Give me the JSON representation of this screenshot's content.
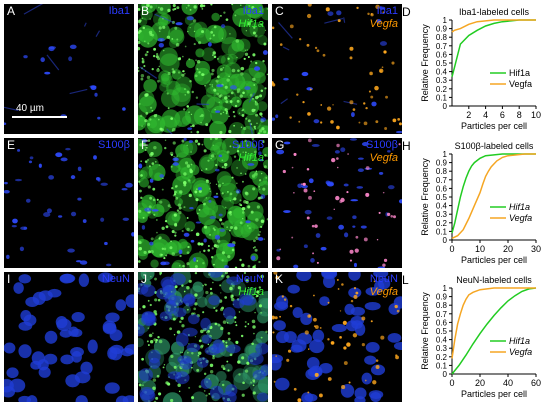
{
  "scale_bar": {
    "label": "40 µm"
  },
  "panels": [
    {
      "letter": "A",
      "marker": "Iba1",
      "probe": "",
      "type": "iba1_a"
    },
    {
      "letter": "B",
      "marker": "Iba1",
      "probe": "Hif1a",
      "type": "iba1_b"
    },
    {
      "letter": "C",
      "marker": "Iba1",
      "probe": "Vegfa",
      "type": "iba1_c"
    },
    {
      "letter": "E",
      "marker": "S100β",
      "probe": "",
      "type": "s100_e"
    },
    {
      "letter": "F",
      "marker": "S100β",
      "probe": "Hif1a",
      "type": "s100_f"
    },
    {
      "letter": "G",
      "marker": "S100β",
      "probe": "Vegfa",
      "type": "s100_g"
    },
    {
      "letter": "I",
      "marker": "NeuN",
      "probe": "",
      "type": "neun_i"
    },
    {
      "letter": "J",
      "marker": "NeuN",
      "probe": "Hif1a",
      "type": "neun_j"
    },
    {
      "letter": "K",
      "marker": "NeuN",
      "probe": "Vegfa",
      "type": "neun_k"
    }
  ],
  "colors": {
    "hif1a": "#22cc22",
    "vegfa": "#f5a623",
    "marker": "#2b3bff"
  },
  "chart_data": [
    {
      "letter": "D",
      "type": "line",
      "title": "Iba1-labeled cells",
      "xlabel": "Particles per cell",
      "ylabel": "Relative Frequency",
      "xlim": [
        0,
        10
      ],
      "ylim": [
        0,
        1.0
      ],
      "xticks": [
        2,
        4,
        6,
        8,
        10
      ],
      "yticks": [
        0,
        0.1,
        0.2,
        0.3,
        0.4,
        0.5,
        0.6,
        0.7,
        0.8,
        0.9,
        1.0
      ],
      "legend_italic": false,
      "series": [
        {
          "name": "Hif1a",
          "color": "#22cc22",
          "x": [
            0,
            0.3,
            1,
            2,
            3,
            4,
            5,
            6,
            7,
            8,
            10
          ],
          "y": [
            0.34,
            0.45,
            0.72,
            0.82,
            0.88,
            0.93,
            0.96,
            0.98,
            0.99,
            1.0,
            1.0
          ]
        },
        {
          "name": "Vegfa",
          "color": "#f5a623",
          "x": [
            0,
            0.3,
            1,
            2,
            3,
            4,
            5,
            6,
            10
          ],
          "y": [
            0.86,
            0.88,
            0.9,
            0.95,
            0.98,
            0.99,
            1.0,
            1.0,
            1.0
          ]
        }
      ]
    },
    {
      "letter": "H",
      "type": "line",
      "title": "S100β-labeled cells",
      "xlabel": "Particles per cell",
      "ylabel": "Relative Frequency",
      "xlim": [
        0,
        30
      ],
      "ylim": [
        0,
        1.0
      ],
      "xticks": [
        0,
        10,
        20,
        30
      ],
      "yticks": [
        0,
        0.1,
        0.2,
        0.3,
        0.4,
        0.5,
        0.6,
        0.7,
        0.8,
        0.9,
        1.0
      ],
      "legend_italic": true,
      "series": [
        {
          "name": "Hif1a",
          "color": "#22cc22",
          "x": [
            0,
            1,
            2,
            3,
            4,
            5,
            6,
            7,
            8,
            10,
            12,
            15,
            18,
            22,
            30
          ],
          "y": [
            0.08,
            0.2,
            0.35,
            0.5,
            0.62,
            0.72,
            0.8,
            0.86,
            0.9,
            0.95,
            0.98,
            0.99,
            1.0,
            1.0,
            1.0
          ]
        },
        {
          "name": "Vegfa",
          "color": "#f5a623",
          "x": [
            0,
            2,
            4,
            6,
            8,
            10,
            11,
            12,
            13,
            14,
            16,
            18,
            20,
            23,
            26,
            30
          ],
          "y": [
            0.02,
            0.05,
            0.12,
            0.25,
            0.4,
            0.55,
            0.65,
            0.74,
            0.8,
            0.85,
            0.92,
            0.96,
            0.98,
            0.99,
            1.0,
            1.0
          ]
        }
      ]
    },
    {
      "letter": "L",
      "type": "line",
      "title": "NeuN-labeled cells",
      "xlabel": "Particles per cell",
      "ylabel": "Relative Frequency",
      "xlim": [
        0,
        60
      ],
      "ylim": [
        0,
        1.0
      ],
      "xticks": [
        0,
        20,
        40,
        60
      ],
      "yticks": [
        0,
        0.1,
        0.2,
        0.3,
        0.4,
        0.5,
        0.6,
        0.7,
        0.8,
        0.9,
        1.0
      ],
      "legend_italic": true,
      "series": [
        {
          "name": "Hif1a",
          "color": "#22cc22",
          "x": [
            0,
            5,
            10,
            15,
            20,
            25,
            30,
            35,
            40,
            45,
            50,
            55,
            60
          ],
          "y": [
            0.0,
            0.1,
            0.22,
            0.35,
            0.47,
            0.58,
            0.68,
            0.77,
            0.85,
            0.91,
            0.96,
            0.99,
            1.0
          ]
        },
        {
          "name": "Vegfa",
          "color": "#f5a623",
          "x": [
            0,
            2,
            4,
            6,
            8,
            10,
            12,
            15,
            20,
            25,
            30,
            40,
            60
          ],
          "y": [
            0.18,
            0.4,
            0.58,
            0.7,
            0.8,
            0.87,
            0.92,
            0.95,
            0.98,
            0.99,
            1.0,
            1.0,
            1.0
          ]
        }
      ]
    }
  ]
}
